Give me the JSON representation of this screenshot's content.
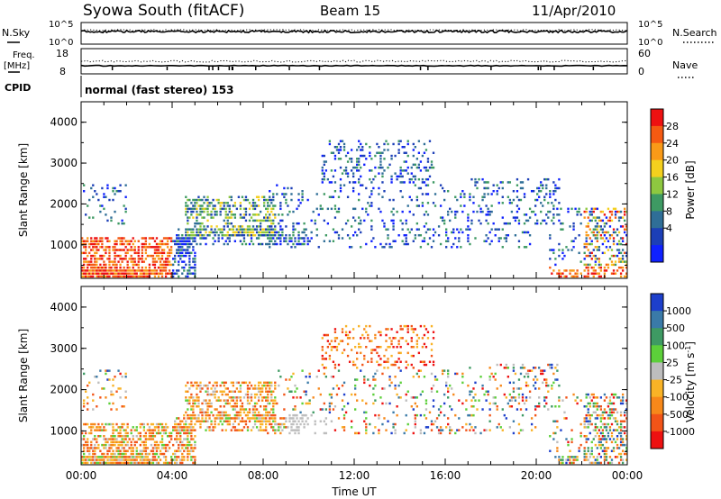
{
  "header": {
    "station": "Syowa South (fitACF)",
    "beam": "Beam 15",
    "date": "11/Apr/2010"
  },
  "top_panels": {
    "nsky_label": "N.Sky",
    "nsearch_label": "N.Search",
    "nsky_ticks": [
      "10^5",
      "10^0"
    ],
    "nsearch_ticks": [
      "10^5",
      "10^0"
    ],
    "freq_label": "Freq.",
    "freq_unit": "[MHz]",
    "freq_ticks": [
      "18",
      "8"
    ],
    "nave_label": "Nave",
    "nave_ticks": [
      "60",
      "0"
    ],
    "cpid_label": "CPID",
    "cpid_text": "normal (fast stereo) 153"
  },
  "chart_data": [
    {
      "type": "heatmap",
      "quantity": "Power",
      "ylabel": "Slant Range [km]",
      "xlabel": "",
      "ylim": [
        180,
        4500
      ],
      "yticks": [
        "1000",
        "2000",
        "3000",
        "4000"
      ],
      "colorbar": {
        "label": "Power [dB]",
        "ticks": [
          "28",
          "24",
          "20",
          "16",
          "12",
          "8",
          "4"
        ],
        "colors": [
          "#ee1111",
          "#f55a12",
          "#f99a18",
          "#f4d01e",
          "#8ec840",
          "#3e9a63",
          "#2f6e97",
          "#1c3fb7",
          "#0f21ff"
        ]
      }
    },
    {
      "type": "heatmap",
      "quantity": "Velocity",
      "ylabel": "Slant Range [km]",
      "xlabel": "Time UT",
      "ylim": [
        180,
        4500
      ],
      "yticks": [
        "1000",
        "2000",
        "3000",
        "4000"
      ],
      "xticks": [
        "00:00",
        "04:00",
        "08:00",
        "12:00",
        "16:00",
        "20:00",
        "00:00"
      ],
      "colorbar": {
        "label": "Velocity [m s^-1]",
        "ticks": [
          "1000",
          "500",
          "100",
          "25",
          "-25",
          "-100",
          "-500",
          "-1000"
        ],
        "colors": [
          "#1d3fcb",
          "#3a7aa8",
          "#3e9a63",
          "#5ccf3a",
          "#bdbdbd",
          "#f9b326",
          "#f7881a",
          "#f25418",
          "#ee1111"
        ]
      }
    }
  ]
}
